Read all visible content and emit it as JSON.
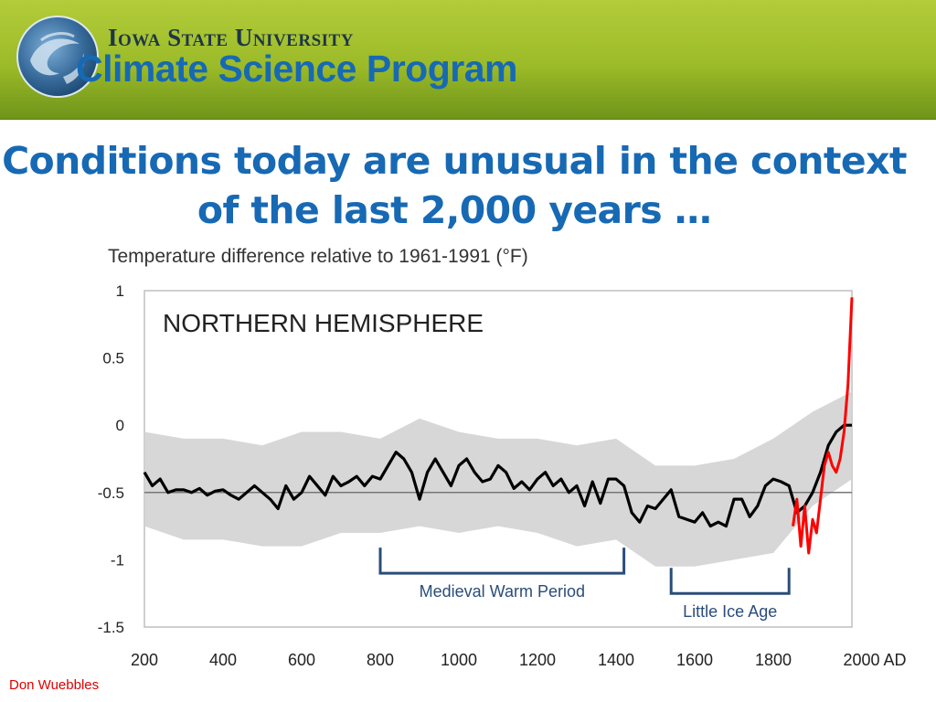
{
  "header": {
    "university": "Iowa State University",
    "program": "Climate Science Program",
    "logo_icon": "globe-swirl-icon"
  },
  "slide": {
    "title_line1": "Conditions today are unusual in the context",
    "title_line2": "of the last 2,000 years …"
  },
  "footer": {
    "credit": "Don Wuebbles"
  },
  "colors": {
    "banner_green": "#a6c22e",
    "title_blue": "#1769b4",
    "reconstruction_line": "#000000",
    "uncertainty_band": "#d3d3d3",
    "instrumental_line": "#ff0000",
    "bracket_blue": "#2a4d7a",
    "credit_red": "#e00000"
  },
  "chart_data": {
    "type": "line",
    "title": "Temperature difference relative to 1961-1991 (°F)",
    "panel_label": "NORTHERN HEMISPHERE",
    "xlim": [
      200,
      2000
    ],
    "ylim": [
      -1.5,
      1
    ],
    "x_ticks": [
      200,
      400,
      600,
      800,
      1000,
      1200,
      1400,
      1600,
      1800,
      2000
    ],
    "x_tick_labels": [
      "200",
      "400",
      "600",
      "800",
      "1000",
      "1200",
      "1400",
      "1600",
      "1800",
      "2000 AD"
    ],
    "y_ticks": [
      1,
      0.5,
      0,
      -0.5,
      -1,
      -1.5
    ],
    "y_tick_labels": [
      "1",
      "0.5",
      "0",
      "-0.5",
      "-1",
      "-1.5"
    ],
    "reference_line_y": -0.5,
    "grid": false,
    "series": [
      {
        "name": "",
        "style": "smoothed reconstruction",
        "color": "#000000",
        "x": [
          200,
          220,
          240,
          260,
          280,
          300,
          320,
          340,
          360,
          380,
          400,
          420,
          440,
          460,
          480,
          500,
          520,
          540,
          560,
          580,
          600,
          620,
          640,
          660,
          680,
          700,
          720,
          740,
          760,
          780,
          800,
          820,
          840,
          860,
          880,
          900,
          920,
          940,
          960,
          980,
          1000,
          1020,
          1040,
          1060,
          1080,
          1100,
          1120,
          1140,
          1160,
          1180,
          1200,
          1220,
          1240,
          1260,
          1280,
          1300,
          1320,
          1340,
          1360,
          1380,
          1400,
          1420,
          1440,
          1460,
          1480,
          1500,
          1520,
          1540,
          1560,
          1580,
          1600,
          1620,
          1640,
          1660,
          1680,
          1700,
          1720,
          1740,
          1760,
          1780,
          1800,
          1820,
          1840,
          1860,
          1880,
          1900,
          1920,
          1940,
          1960,
          1980,
          2000
        ],
        "values": [
          -0.35,
          -0.45,
          -0.4,
          -0.5,
          -0.48,
          -0.48,
          -0.5,
          -0.47,
          -0.52,
          -0.49,
          -0.48,
          -0.52,
          -0.55,
          -0.5,
          -0.45,
          -0.5,
          -0.55,
          -0.62,
          -0.45,
          -0.55,
          -0.5,
          -0.38,
          -0.45,
          -0.52,
          -0.38,
          -0.45,
          -0.42,
          -0.38,
          -0.45,
          -0.38,
          -0.4,
          -0.3,
          -0.2,
          -0.25,
          -0.35,
          -0.55,
          -0.35,
          -0.25,
          -0.35,
          -0.45,
          -0.3,
          -0.25,
          -0.35,
          -0.42,
          -0.4,
          -0.3,
          -0.35,
          -0.47,
          -0.42,
          -0.48,
          -0.4,
          -0.35,
          -0.45,
          -0.4,
          -0.5,
          -0.45,
          -0.6,
          -0.42,
          -0.58,
          -0.4,
          -0.4,
          -0.45,
          -0.65,
          -0.72,
          -0.6,
          -0.62,
          -0.55,
          -0.48,
          -0.68,
          -0.7,
          -0.72,
          -0.65,
          -0.75,
          -0.72,
          -0.75,
          -0.55,
          -0.55,
          -0.68,
          -0.6,
          -0.45,
          -0.4,
          -0.42,
          -0.45,
          -0.65,
          -0.6,
          -0.5,
          -0.35,
          -0.15,
          -0.05,
          0,
          0
        ]
      },
      {
        "name": "",
        "style": "uncertainty band",
        "color": "#d3d3d3",
        "x": [
          200,
          300,
          400,
          500,
          600,
          700,
          800,
          900,
          1000,
          1100,
          1200,
          1300,
          1400,
          1500,
          1600,
          1700,
          1800,
          1900,
          2000
        ],
        "upper": [
          -0.05,
          -0.1,
          -0.1,
          -0.15,
          -0.05,
          -0.05,
          -0.1,
          0.05,
          -0.05,
          -0.1,
          -0.1,
          -0.15,
          -0.1,
          -0.3,
          -0.3,
          -0.25,
          -0.1,
          0.1,
          0.25
        ],
        "lower": [
          -0.75,
          -0.85,
          -0.85,
          -0.9,
          -0.9,
          -0.8,
          -0.8,
          -0.75,
          -0.8,
          -0.75,
          -0.8,
          -0.9,
          -0.85,
          -1.05,
          -1.05,
          -1.0,
          -0.95,
          -0.6,
          -0.4
        ]
      },
      {
        "name": "",
        "style": "instrumental record",
        "color": "#ff0000",
        "x": [
          1850,
          1860,
          1870,
          1880,
          1890,
          1900,
          1910,
          1920,
          1930,
          1940,
          1950,
          1960,
          1970,
          1980,
          1990,
          2000
        ],
        "values": [
          -0.75,
          -0.55,
          -0.9,
          -0.6,
          -0.95,
          -0.7,
          -0.8,
          -0.55,
          -0.3,
          -0.2,
          -0.3,
          -0.35,
          -0.25,
          -0.05,
          0.3,
          0.95
        ]
      }
    ],
    "annotations": [
      {
        "label": "Medieval Warm Period",
        "x_start": 800,
        "x_end": 1420,
        "y": -1.1
      },
      {
        "label": "Little Ice Age",
        "x_start": 1540,
        "x_end": 1840,
        "y": -1.25
      }
    ]
  }
}
